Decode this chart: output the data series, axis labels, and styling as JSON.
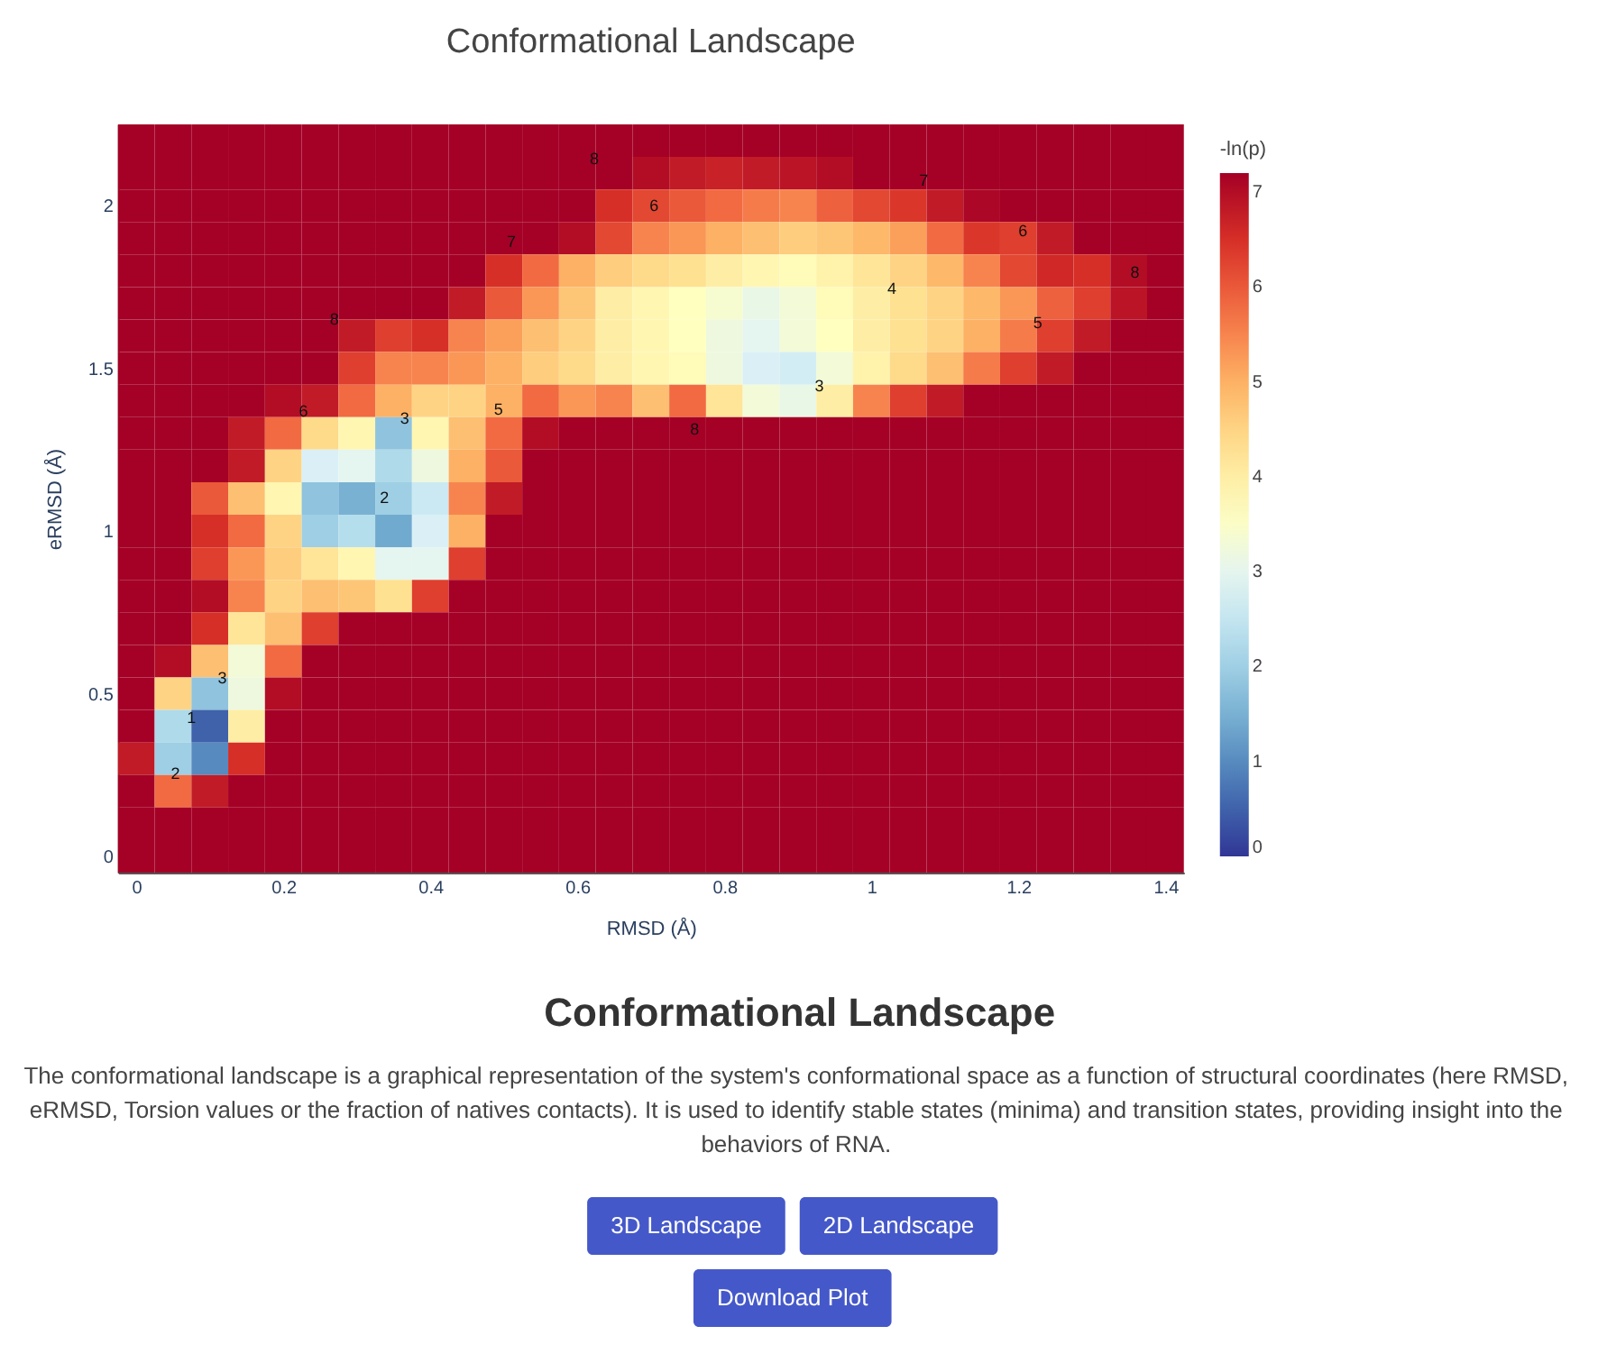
{
  "chart_data": {
    "type": "heatmap",
    "title": "Conformational Landscape",
    "xlabel": "RMSD (Å)",
    "ylabel": "eRMSD (Å)",
    "clabel": "-ln(p)",
    "x": [
      0,
      0.05,
      0.1,
      0.15,
      0.2,
      0.25,
      0.3,
      0.35,
      0.4,
      0.45,
      0.5,
      0.55,
      0.6,
      0.65,
      0.7,
      0.75,
      0.8,
      0.85,
      0.9,
      0.95,
      1.0,
      1.05,
      1.1,
      1.15,
      1.2,
      1.25,
      1.3,
      1.35,
      1.4
    ],
    "cells": [
      [
        7.2,
        7.2,
        7.2,
        7.2,
        7.2,
        7.2,
        7.2,
        7.2,
        7.2,
        7.2,
        7.2,
        7.2,
        7.2,
        7.2,
        7.2,
        7.2,
        7.2,
        7.2,
        7.2,
        7.2,
        7.2,
        7.2,
        7.2,
        7.2,
        7.2,
        7.2,
        7.2,
        7.2,
        7.2
      ],
      [
        7.2,
        7.2,
        7.2,
        7.2,
        7.2,
        7.2,
        7.2,
        7.2,
        7.2,
        7.2,
        7.2,
        7.2,
        7.2,
        7.2,
        7.0,
        6.8,
        6.7,
        6.8,
        6.9,
        7.0,
        7.2,
        7.2,
        7.2,
        7.2,
        7.2,
        7.2,
        7.2,
        7.2,
        7.2
      ],
      [
        7.2,
        7.2,
        7.2,
        7.2,
        7.2,
        7.2,
        7.2,
        7.2,
        7.2,
        7.2,
        7.2,
        7.2,
        7.2,
        6.5,
        6.2,
        6.0,
        5.8,
        5.6,
        5.5,
        5.9,
        6.2,
        6.4,
        6.8,
        7.1,
        7.2,
        7.2,
        7.2,
        7.2,
        7.2
      ],
      [
        7.2,
        7.2,
        7.2,
        7.2,
        7.2,
        7.2,
        7.2,
        7.2,
        7.2,
        7.2,
        7.2,
        7.2,
        7.0,
        6.2,
        5.5,
        5.3,
        5.0,
        4.8,
        4.6,
        4.7,
        4.9,
        5.2,
        5.8,
        6.4,
        6.3,
        6.8,
        7.2,
        7.2,
        7.2
      ],
      [
        7.2,
        7.2,
        7.2,
        7.2,
        7.2,
        7.2,
        7.2,
        7.2,
        7.2,
        7.2,
        6.5,
        5.8,
        5.0,
        4.6,
        4.4,
        4.3,
        4.0,
        3.8,
        3.7,
        3.9,
        4.2,
        4.5,
        4.9,
        5.5,
        6.2,
        6.6,
        6.5,
        7.0,
        7.2
      ],
      [
        7.2,
        7.2,
        7.2,
        7.2,
        7.2,
        7.2,
        7.2,
        7.2,
        7.2,
        6.8,
        6.0,
        5.3,
        4.7,
        4.0,
        3.8,
        3.6,
        3.4,
        3.1,
        3.3,
        3.7,
        4.0,
        4.3,
        4.5,
        4.9,
        5.3,
        5.9,
        6.3,
        6.9,
        7.2
      ],
      [
        7.2,
        7.2,
        7.2,
        7.2,
        7.2,
        7.2,
        6.8,
        6.3,
        6.5,
        5.5,
        5.2,
        4.8,
        4.5,
        4.0,
        3.8,
        3.6,
        3.2,
        3.0,
        3.3,
        3.6,
        4.0,
        4.3,
        4.5,
        5.0,
        5.6,
        6.3,
        6.8,
        7.2,
        7.2
      ],
      [
        7.2,
        7.2,
        7.2,
        7.2,
        7.2,
        7.2,
        6.3,
        5.5,
        5.5,
        5.3,
        5.0,
        4.6,
        4.4,
        4.0,
        3.8,
        3.7,
        3.2,
        2.8,
        2.7,
        3.3,
        3.9,
        4.4,
        4.8,
        5.6,
        6.3,
        6.8,
        7.2,
        7.2,
        7.2
      ],
      [
        7.2,
        7.2,
        7.2,
        7.2,
        7.0,
        6.8,
        5.8,
        5.0,
        4.5,
        4.5,
        5.0,
        5.8,
        5.3,
        5.5,
        4.8,
        5.8,
        4.2,
        3.3,
        3.1,
        4.0,
        5.5,
        6.3,
        6.8,
        7.2,
        7.2,
        7.2,
        7.2,
        7.2,
        7.2
      ],
      [
        7.2,
        7.2,
        7.2,
        6.8,
        5.8,
        4.4,
        3.8,
        1.8,
        3.8,
        4.8,
        5.8,
        7.0,
        7.2,
        7.2,
        7.2,
        7.2,
        7.2,
        7.2,
        7.2,
        7.2,
        7.2,
        7.2,
        7.2,
        7.2,
        7.2,
        7.2,
        7.2,
        7.2,
        7.2
      ],
      [
        7.2,
        7.2,
        7.2,
        6.8,
        4.5,
        2.8,
        3.0,
        2.2,
        3.2,
        5.0,
        6.0,
        7.2,
        7.2,
        7.2,
        7.2,
        7.2,
        7.2,
        7.2,
        7.2,
        7.2,
        7.2,
        7.2,
        7.2,
        7.2,
        7.2,
        7.2,
        7.2,
        7.2,
        7.2
      ],
      [
        7.2,
        7.2,
        6.0,
        4.8,
        3.8,
        1.8,
        1.5,
        2.0,
        2.6,
        5.5,
        6.8,
        7.2,
        7.2,
        7.2,
        7.2,
        7.2,
        7.2,
        7.2,
        7.2,
        7.2,
        7.2,
        7.2,
        7.2,
        7.2,
        7.2,
        7.2,
        7.2,
        7.2,
        7.2
      ],
      [
        7.2,
        7.2,
        6.5,
        5.8,
        4.5,
        2.0,
        2.3,
        1.4,
        2.8,
        5.0,
        7.2,
        7.2,
        7.2,
        7.2,
        7.2,
        7.2,
        7.2,
        7.2,
        7.2,
        7.2,
        7.2,
        7.2,
        7.2,
        7.2,
        7.2,
        7.2,
        7.2,
        7.2,
        7.2
      ],
      [
        7.2,
        7.2,
        6.3,
        5.3,
        4.6,
        4.2,
        3.8,
        3.0,
        3.0,
        6.3,
        7.2,
        7.2,
        7.2,
        7.2,
        7.2,
        7.2,
        7.2,
        7.2,
        7.2,
        7.2,
        7.2,
        7.2,
        7.2,
        7.2,
        7.2,
        7.2,
        7.2,
        7.2,
        7.2
      ],
      [
        7.2,
        7.2,
        7.0,
        5.5,
        4.5,
        4.8,
        4.7,
        4.3,
        6.3,
        7.2,
        7.2,
        7.2,
        7.2,
        7.2,
        7.2,
        7.2,
        7.2,
        7.2,
        7.2,
        7.2,
        7.2,
        7.2,
        7.2,
        7.2,
        7.2,
        7.2,
        7.2,
        7.2,
        7.2
      ],
      [
        7.2,
        7.2,
        6.5,
        4.2,
        4.8,
        6.3,
        7.2,
        7.2,
        7.2,
        7.2,
        7.2,
        7.2,
        7.2,
        7.2,
        7.2,
        7.2,
        7.2,
        7.2,
        7.2,
        7.2,
        7.2,
        7.2,
        7.2,
        7.2,
        7.2,
        7.2,
        7.2,
        7.2,
        7.2
      ],
      [
        7.2,
        7.0,
        4.8,
        3.3,
        5.8,
        7.2,
        7.2,
        7.2,
        7.2,
        7.2,
        7.2,
        7.2,
        7.2,
        7.2,
        7.2,
        7.2,
        7.2,
        7.2,
        7.2,
        7.2,
        7.2,
        7.2,
        7.2,
        7.2,
        7.2,
        7.2,
        7.2,
        7.2,
        7.2
      ],
      [
        7.2,
        4.5,
        1.8,
        3.2,
        7.0,
        7.2,
        7.2,
        7.2,
        7.2,
        7.2,
        7.2,
        7.2,
        7.2,
        7.2,
        7.2,
        7.2,
        7.2,
        7.2,
        7.2,
        7.2,
        7.2,
        7.2,
        7.2,
        7.2,
        7.2,
        7.2,
        7.2,
        7.2,
        7.2
      ],
      [
        7.2,
        2.2,
        0.5,
        4.0,
        7.2,
        7.2,
        7.2,
        7.2,
        7.2,
        7.2,
        7.2,
        7.2,
        7.2,
        7.2,
        7.2,
        7.2,
        7.2,
        7.2,
        7.2,
        7.2,
        7.2,
        7.2,
        7.2,
        7.2,
        7.2,
        7.2,
        7.2,
        7.2,
        7.2
      ],
      [
        6.8,
        2.0,
        1.0,
        6.5,
        7.2,
        7.2,
        7.2,
        7.2,
        7.2,
        7.2,
        7.2,
        7.2,
        7.2,
        7.2,
        7.2,
        7.2,
        7.2,
        7.2,
        7.2,
        7.2,
        7.2,
        7.2,
        7.2,
        7.2,
        7.2,
        7.2,
        7.2,
        7.2,
        7.2
      ],
      [
        7.2,
        5.8,
        6.8,
        7.2,
        7.2,
        7.2,
        7.2,
        7.2,
        7.2,
        7.2,
        7.2,
        7.2,
        7.2,
        7.2,
        7.2,
        7.2,
        7.2,
        7.2,
        7.2,
        7.2,
        7.2,
        7.2,
        7.2,
        7.2,
        7.2,
        7.2,
        7.2,
        7.2,
        7.2
      ],
      [
        7.2,
        7.2,
        7.2,
        7.2,
        7.2,
        7.2,
        7.2,
        7.2,
        7.2,
        7.2,
        7.2,
        7.2,
        7.2,
        7.2,
        7.2,
        7.2,
        7.2,
        7.2,
        7.2,
        7.2,
        7.2,
        7.2,
        7.2,
        7.2,
        7.2,
        7.2,
        7.2,
        7.2,
        7.2
      ],
      [
        7.2,
        7.2,
        7.2,
        7.2,
        7.2,
        7.2,
        7.2,
        7.2,
        7.2,
        7.2,
        7.2,
        7.2,
        7.2,
        7.2,
        7.2,
        7.2,
        7.2,
        7.2,
        7.2,
        7.2,
        7.2,
        7.2,
        7.2,
        7.2,
        7.2,
        7.2,
        7.2,
        7.2,
        7.2
      ]
    ],
    "colors": [
      "#313695",
      "#4575b4",
      "#74add1",
      "#abd9e9",
      "#e0f3f8",
      "#ffffbf",
      "#fee090",
      "#fdae61",
      "#f46d43",
      "#d73027",
      "#a50026"
    ],
    "xlim": [
      -0.025,
      1.425
    ],
    "ylim": [
      -0.05,
      2.25
    ],
    "xticks": [
      0,
      0.2,
      0.4,
      0.6,
      0.8,
      1,
      1.2,
      1.4
    ],
    "yticks": [
      0,
      0.5,
      1,
      1.5,
      2
    ],
    "clim": [
      0,
      7.2
    ],
    "cticks": [
      0,
      1,
      2,
      3,
      4,
      5,
      6,
      7
    ],
    "annotations": [
      "8",
      "7",
      "8",
      "6",
      "5",
      "3",
      "2",
      "6",
      "7",
      "6",
      "8",
      "4",
      "5",
      "3",
      "8",
      "3",
      "1",
      "2",
      "Conformational Landscape",
      "The conformational landscape is a graphical representation of the system's conformational space as a function of structural coordinates (here RMSD, eRMSD, Torsion values or the fraction of natives contacts). It is used to identify stable states (minima) and transition states, providing insight into the behaviors of RNA.",
      "3D Landscape",
      "2D Landscape",
      "Download Plot"
    ]
  }
}
